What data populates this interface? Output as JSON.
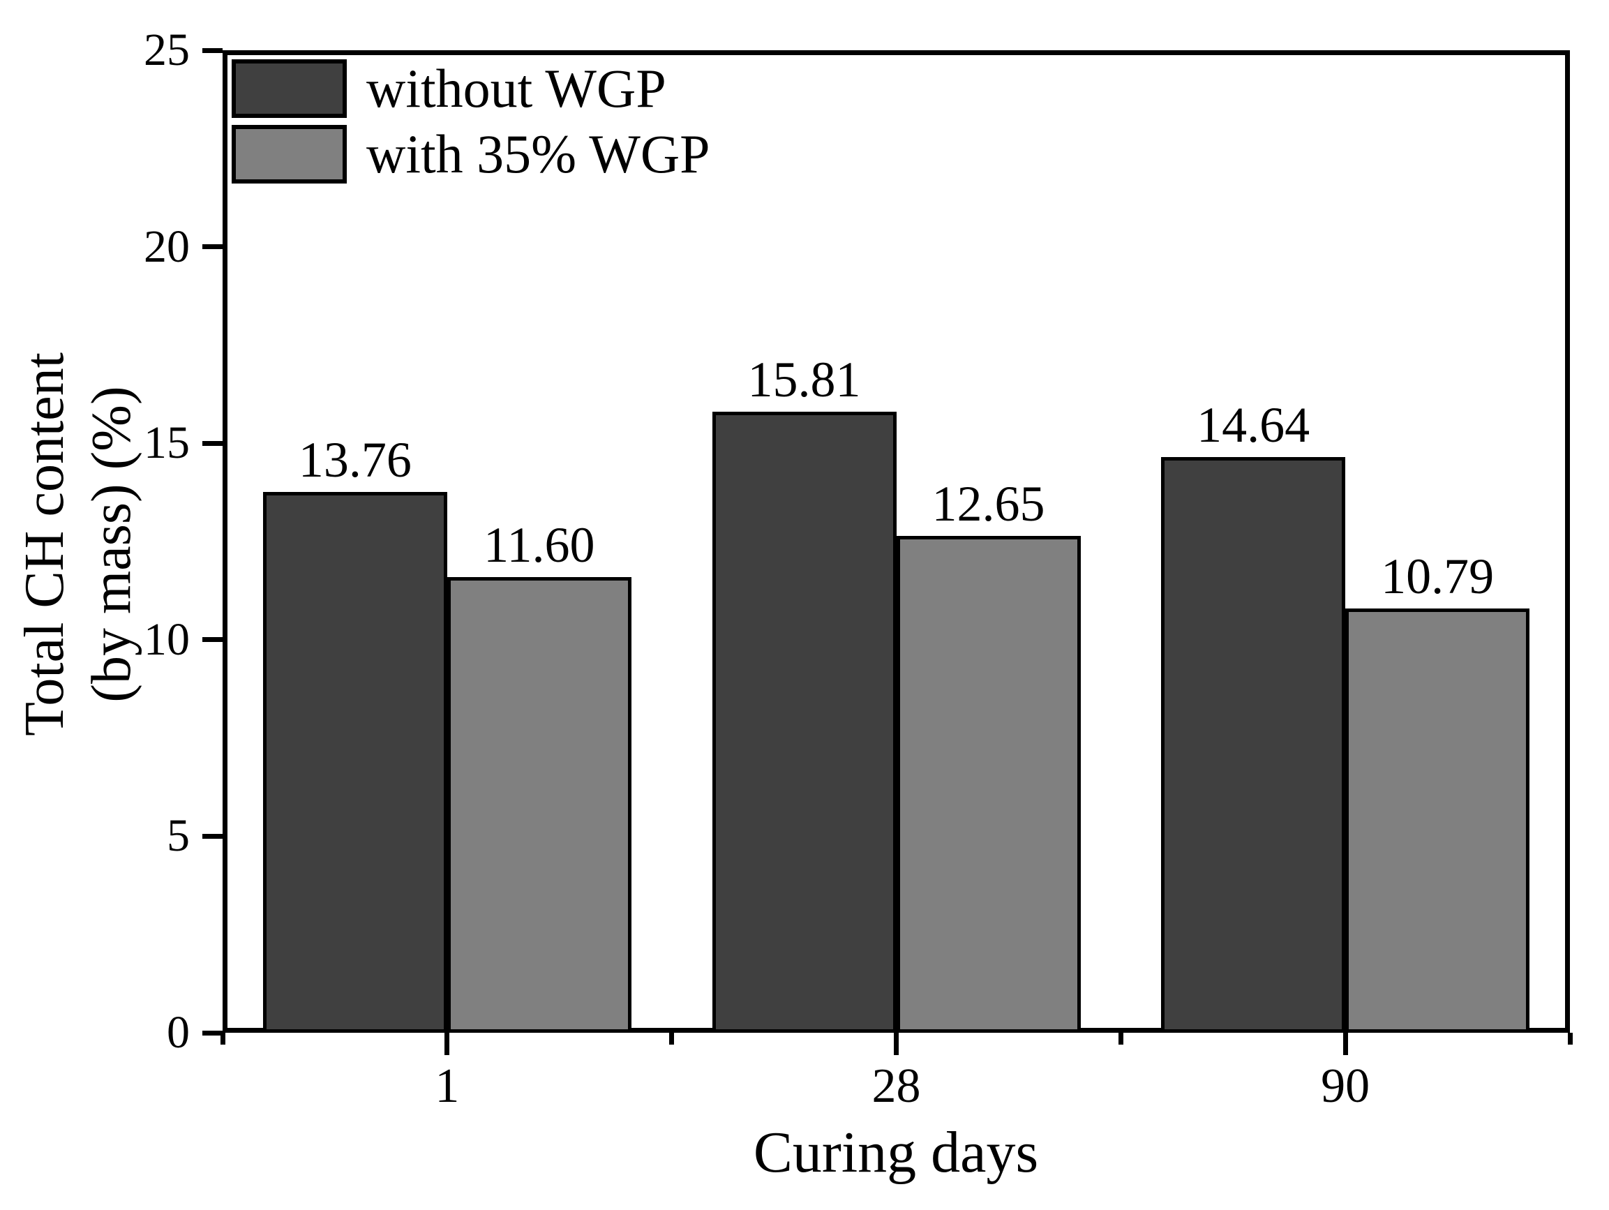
{
  "chart_data": {
    "type": "bar",
    "title": "",
    "xlabel": "Curing days",
    "ylabel_line1": "Total CH content",
    "ylabel_line2": "(by mass) (%)",
    "categories": [
      "1",
      "28",
      "90"
    ],
    "series": [
      {
        "name": "without WGP",
        "values": [
          13.76,
          15.81,
          14.64
        ],
        "color": "#404040"
      },
      {
        "name": "with 35% WGP",
        "values": [
          11.6,
          12.65,
          10.79
        ],
        "color": "#808080"
      }
    ],
    "value_label_decimals": 2,
    "ylim": [
      0,
      25
    ],
    "yticks": [
      0,
      5,
      10,
      15,
      20,
      25
    ],
    "grid": false,
    "legend_position": "top-left",
    "bar_edge_color": "#000000",
    "axis_color": "#000000",
    "background_color": "#ffffff"
  }
}
